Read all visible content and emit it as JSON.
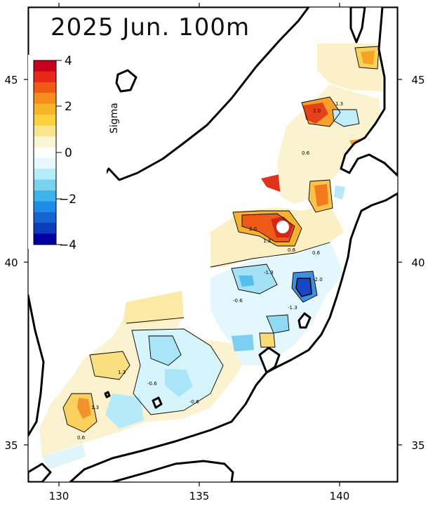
{
  "title": "2025 Jun. 100m",
  "colorbar": {
    "title": "Sigma",
    "ticks": [
      "4",
      "2",
      "0",
      "−2",
      "−4"
    ],
    "colors": [
      "#c8001e",
      "#e62818",
      "#f05a14",
      "#f58c1e",
      "#f8b428",
      "#fad23c",
      "#f8e68c",
      "#fbf5d2",
      "#ffffff",
      "#e6f8fc",
      "#b4ecf8",
      "#78d2f0",
      "#3cb4eb",
      "#1e8ce6",
      "#1464d2",
      "#0a3cbe",
      "#0000a0"
    ]
  },
  "axes": {
    "x_ticks": [
      "130",
      "135",
      "140"
    ],
    "y_ticks_left": [
      "45",
      "40",
      "35"
    ],
    "y_ticks_right": [
      "45",
      "40",
      "35"
    ]
  },
  "contour_labels": [
    "2.0",
    "1.3",
    "0.6",
    "-0.6",
    "-1.3",
    "-2.0"
  ],
  "chart_data": {
    "type": "heatmap",
    "title": "2025 Jun. 100m",
    "variable": "Sigma",
    "xlim": [
      129,
      142
    ],
    "ylim": [
      34,
      47
    ],
    "color_range": [
      -4,
      4
    ],
    "contour_levels": [
      -2.0,
      -1.3,
      -0.6,
      0.6,
      1.3,
      2.0
    ],
    "x_ticks": [
      130,
      135,
      140
    ],
    "y_ticks": [
      35,
      40,
      45
    ],
    "hotspots": [
      {
        "lon": 137.6,
        "lat": 40.9,
        "sigma": 3.0
      },
      {
        "lon": 137.3,
        "lat": 42.2,
        "sigma": 3.5
      },
      {
        "lon": 138.0,
        "lat": 42.8,
        "sigma": 2.8
      },
      {
        "lon": 138.0,
        "lat": 44.2,
        "sigma": 2.5
      },
      {
        "lon": 138.4,
        "lat": 41.8,
        "sigma": 2.5
      },
      {
        "lon": 131.0,
        "lat": 36.0,
        "sigma": 2.5
      },
      {
        "lon": 138.8,
        "lat": 39.3,
        "sigma": -3.5
      },
      {
        "lon": 136.1,
        "lat": 39.4,
        "sigma": -1.5
      },
      {
        "lon": 133.2,
        "lat": 37.3,
        "sigma": -1.0
      }
    ]
  }
}
